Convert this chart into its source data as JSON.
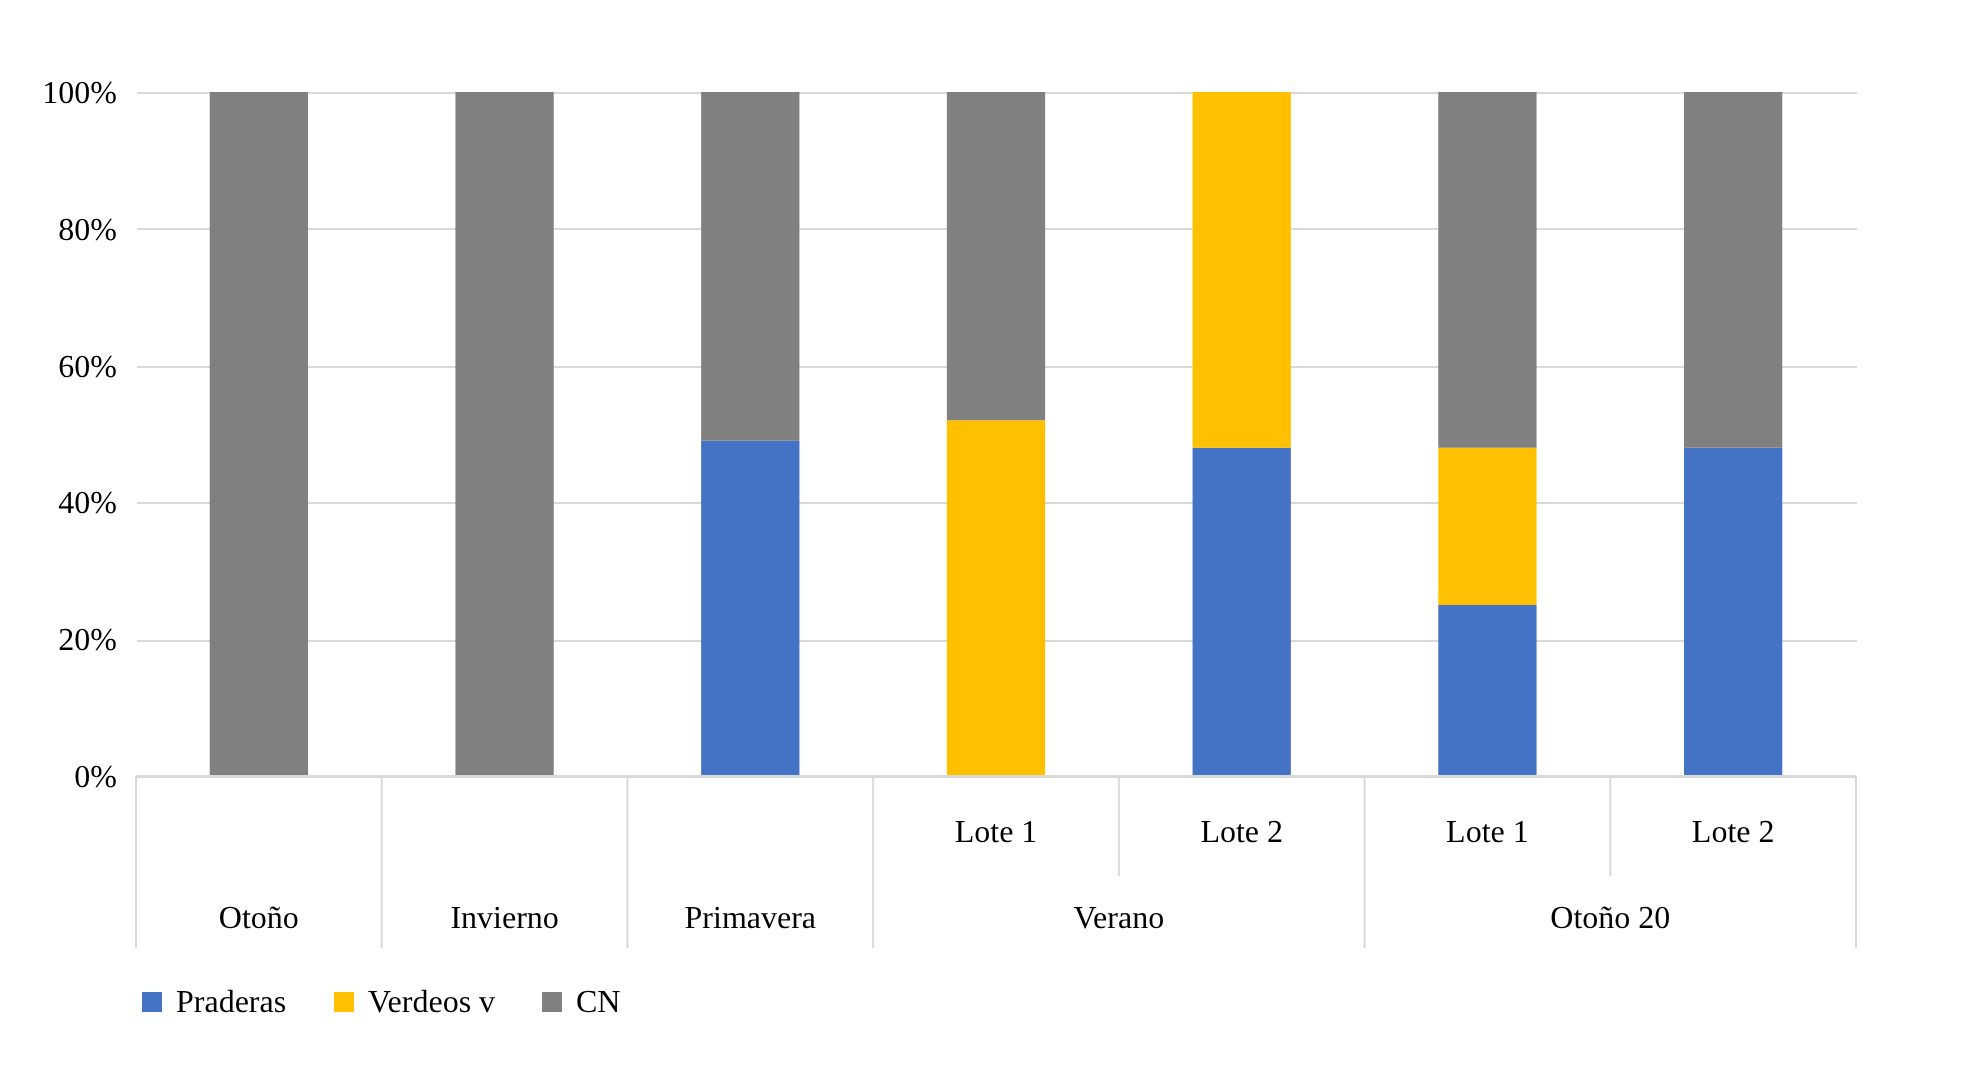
{
  "chart_data": {
    "type": "bar",
    "stacked": true,
    "categories": [
      "Otoño",
      "Invierno",
      "Primavera",
      "Lote 1",
      "Lote 2",
      "Lote 1",
      "Lote 2"
    ],
    "annotations": [
      "Verano",
      "Otoño 20"
    ],
    "series": [
      {
        "name": "Praderas",
        "color": "#4472c4",
        "values": [
          0,
          0,
          49,
          0,
          48,
          25,
          48
        ]
      },
      {
        "name": "Verdeos v",
        "color": "#ffc000",
        "values": [
          0,
          0,
          0,
          52,
          52,
          23,
          0
        ]
      },
      {
        "name": "CN",
        "color": "#808080",
        "values": [
          100,
          100,
          51,
          48,
          0,
          52,
          52
        ]
      }
    ],
    "ylim": [
      0,
      100
    ],
    "yticks": [
      {
        "value": 0,
        "label": "0%"
      },
      {
        "value": 20,
        "label": "20%"
      },
      {
        "value": 40,
        "label": "40%"
      },
      {
        "value": 60,
        "label": "60%"
      },
      {
        "value": 80,
        "label": "80%"
      },
      {
        "value": 100,
        "label": "100%"
      }
    ],
    "grid": "y",
    "legend": "bottom"
  }
}
